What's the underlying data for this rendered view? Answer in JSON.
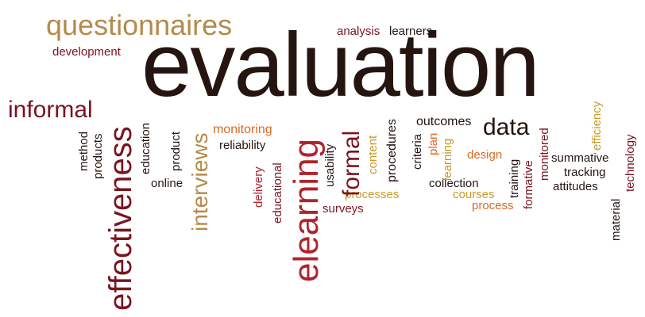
{
  "words": {
    "evaluation": "evaluation",
    "questionnaires": "questionnaires",
    "development": "development",
    "informal": "informal",
    "effectiveness": "effectiveness",
    "interviews": "interviews",
    "elearning": "elearning",
    "formal": "formal",
    "data": "data",
    "analysis": "analysis",
    "learners": "learners",
    "outcomes": "outcomes",
    "method": "method",
    "products": "products",
    "education": "education",
    "product": "product",
    "online": "online",
    "monitoring": "monitoring",
    "reliability": "reliability",
    "delivery": "delivery",
    "educational": "educational",
    "usability": "usability",
    "content": "content",
    "procedures": "procedures",
    "criteria": "criteria",
    "plan": "plan",
    "learning": "learning",
    "design": "design",
    "monitored": "monitored",
    "efficiency": "efficiency",
    "technology": "technology",
    "summative": "summative",
    "tracking": "tracking",
    "attitudes": "attitudes",
    "training": "training",
    "formative": "formative",
    "collection": "collection",
    "courses": "courses",
    "process": "process",
    "processes": "processes",
    "surveys": "surveys",
    "material": "material"
  },
  "colors": {
    "dark": "#241510",
    "brown": "#4a2a1e",
    "maroon": "#7a1420",
    "red": "#b2222b",
    "orange": "#d86a28",
    "gold": "#c79a2a",
    "tan": "#b58a4a"
  }
}
